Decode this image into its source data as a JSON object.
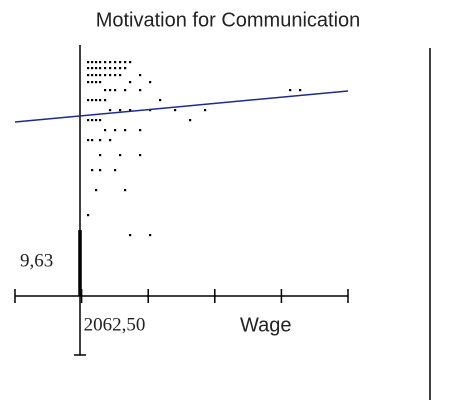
{
  "chart_data": {
    "type": "scatter",
    "title": "Motivation for Communication",
    "x_label": "Wage",
    "xlim": [
      0,
      10312.5
    ],
    "ylim": [
      0.33,
      31.33
    ],
    "xticks": [
      {
        "value": 2062.5,
        "label": "2062,50"
      }
    ],
    "xticks_unlabeled": [
      0,
      4125,
      6187.5,
      8250,
      10312.5
    ],
    "yticks": [
      {
        "value": 9.63,
        "label": "9,63"
      }
    ],
    "color": "#000000",
    "series": [
      {
        "name": "Motivation for Communication",
        "color": "#000000",
        "x": [
          2261,
          2385,
          2508,
          2632,
          2787,
          2942,
          3097,
          3252,
          3407,
          3561,
          2261,
          2385,
          2508,
          2632,
          2787,
          2942,
          3097,
          3252,
          3407,
          3871,
          2261,
          2385,
          2508,
          2632,
          2787,
          2942,
          3097,
          3252,
          3561,
          4181,
          2261,
          2385,
          2508,
          2632,
          2787,
          2942,
          3097,
          3407,
          3871,
          4491,
          2261,
          2385,
          2508,
          2632,
          2787,
          2942,
          3252,
          3561,
          4181,
          4955,
          2261,
          2385,
          2508,
          2632,
          2787,
          3097,
          3407,
          3871,
          5420,
          2261,
          2385,
          2632,
          2942,
          3252,
          3871,
          2385,
          2632,
          3097,
          2508,
          3407,
          2261,
          3561,
          5884,
          8517,
          8826,
          4181,
          2632
        ],
        "y": [
          29.63,
          29.63,
          29.63,
          29.63,
          29.63,
          29.63,
          29.63,
          29.63,
          29.63,
          29.63,
          29.03,
          29.03,
          29.03,
          29.03,
          29.03,
          29.03,
          29.03,
          29.03,
          29.03,
          28.33,
          28.33,
          28.33,
          28.33,
          28.33,
          28.33,
          28.33,
          28.33,
          28.33,
          27.63,
          27.63,
          27.63,
          27.63,
          27.63,
          27.63,
          26.83,
          26.83,
          26.83,
          26.83,
          26.83,
          25.83,
          25.83,
          25.83,
          25.83,
          25.83,
          25.83,
          24.83,
          24.83,
          24.83,
          24.83,
          24.83,
          23.83,
          23.83,
          23.83,
          23.83,
          22.83,
          22.83,
          22.83,
          22.83,
          23.83,
          21.83,
          21.83,
          21.83,
          21.83,
          20.33,
          20.33,
          18.83,
          18.83,
          18.83,
          16.83,
          16.83,
          14.33,
          12.33,
          24.83,
          26.83,
          26.83,
          12.33,
          20.33
        ]
      }
    ],
    "trend": {
      "x": [
        0,
        10312.5
      ],
      "y": [
        23.63,
        26.73
      ],
      "color": "#1f2a8f"
    }
  }
}
